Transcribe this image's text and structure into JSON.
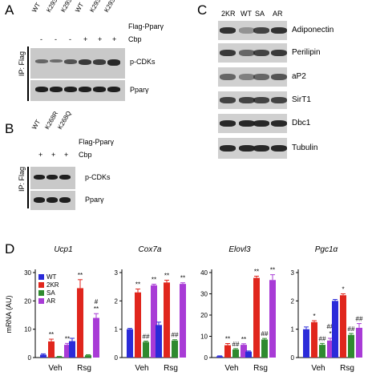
{
  "panelA": {
    "label": "A",
    "lanes": [
      "WT",
      "K293R",
      "K293Q",
      "WT",
      "K293R",
      "K293Q"
    ],
    "construct_label": "Flag-Pparγ",
    "cbp_label": "Cbp",
    "cbp_signs": [
      "-",
      "-",
      "-",
      "+",
      "+",
      "+"
    ],
    "ip_label": "IP: Flag",
    "blots": [
      "p-CDKs",
      "Pparγ"
    ]
  },
  "panelB": {
    "label": "B",
    "lanes": [
      "WT",
      "K268R",
      "K268Q"
    ],
    "construct_label": "Flag-Pparγ",
    "cbp_label": "Cbp",
    "cbp_signs": [
      "+",
      "+",
      "+"
    ],
    "ip_label": "IP: Flag",
    "blots": [
      "p-CDKs",
      "Pparγ"
    ]
  },
  "panelC": {
    "label": "C",
    "lanes": [
      "2KR",
      "WT",
      "SA",
      "AR"
    ],
    "blots": [
      "Adiponectin",
      "Perilipin",
      "aP2",
      "SirT1",
      "Dbc1",
      "Tubulin"
    ]
  },
  "panelD": {
    "label": "D",
    "ylabel": "mRNA (AU)",
    "legend": [
      {
        "name": "WT",
        "color": "#2b2bd9"
      },
      {
        "name": "2KR",
        "color": "#e0261d"
      },
      {
        "name": "SA",
        "color": "#2f8a2f"
      },
      {
        "name": "AR",
        "color": "#a83bd6"
      }
    ]
  },
  "chart_data": [
    {
      "type": "bar",
      "title": "Ucp1",
      "categories": [
        "Veh",
        "Rsg"
      ],
      "ylim": [
        0,
        30
      ],
      "yticks": [
        0,
        10,
        20,
        30
      ],
      "series": [
        {
          "name": "WT",
          "values": [
            1.0,
            5.8
          ],
          "errors": [
            0.3,
            1.0
          ]
        },
        {
          "name": "2KR",
          "values": [
            5.7,
            24.5
          ],
          "errors": [
            0.8,
            3.0
          ]
        },
        {
          "name": "SA",
          "values": [
            0.3,
            0.8
          ],
          "errors": [
            0.1,
            0.2
          ]
        },
        {
          "name": "AR",
          "values": [
            4.5,
            14.0
          ],
          "errors": [
            0.5,
            1.5
          ]
        }
      ],
      "annotations": [
        [
          "",
          "**",
          "",
          "**"
        ],
        [
          "",
          "**",
          "",
          "#\n**"
        ]
      ]
    },
    {
      "type": "bar",
      "title": "Cox7a",
      "categories": [
        "Veh",
        "Rsg"
      ],
      "ylim": [
        0,
        3
      ],
      "yticks": [
        0,
        1,
        2,
        3
      ],
      "series": [
        {
          "name": "WT",
          "values": [
            1.0,
            1.15
          ],
          "errors": [
            0.03,
            0.1
          ]
        },
        {
          "name": "2KR",
          "values": [
            2.3,
            2.65
          ],
          "errors": [
            0.12,
            0.08
          ]
        },
        {
          "name": "SA",
          "values": [
            0.55,
            0.6
          ],
          "errors": [
            0.03,
            0.03
          ]
        },
        {
          "name": "AR",
          "values": [
            2.55,
            2.6
          ],
          "errors": [
            0.04,
            0.04
          ]
        }
      ],
      "annotations": [
        [
          "",
          "**",
          "##",
          "**"
        ],
        [
          "",
          "**",
          "##",
          "**"
        ]
      ]
    },
    {
      "type": "bar",
      "title": "Elovl3",
      "categories": [
        "Veh",
        "Rsg"
      ],
      "ylim": [
        0,
        40
      ],
      "yticks": [
        0,
        10,
        20,
        30,
        40
      ],
      "series": [
        {
          "name": "WT",
          "values": [
            0.6,
            2.8
          ],
          "errors": [
            0.2,
            0.3
          ]
        },
        {
          "name": "2KR",
          "values": [
            5.8,
            37.5
          ],
          "errors": [
            0.8,
            0.8
          ]
        },
        {
          "name": "SA",
          "values": [
            3.8,
            8.5
          ],
          "errors": [
            0.4,
            0.5
          ]
        },
        {
          "name": "AR",
          "values": [
            6.0,
            36.5
          ],
          "errors": [
            0.5,
            2.5
          ]
        }
      ],
      "annotations": [
        [
          "",
          "**",
          "##",
          "**"
        ],
        [
          "",
          "**",
          "##",
          "**"
        ]
      ]
    },
    {
      "type": "bar",
      "title": "Pgc1α",
      "categories": [
        "Veh",
        "Rsg"
      ],
      "ylim": [
        0,
        3
      ],
      "yticks": [
        0,
        1,
        2,
        3
      ],
      "series": [
        {
          "name": "WT",
          "values": [
            1.0,
            2.0
          ],
          "errors": [
            0.08,
            0.05
          ]
        },
        {
          "name": "2KR",
          "values": [
            1.25,
            2.2
          ],
          "errors": [
            0.05,
            0.05
          ]
        },
        {
          "name": "SA",
          "values": [
            0.45,
            0.8
          ],
          "errors": [
            0.05,
            0.05
          ]
        },
        {
          "name": "AR",
          "values": [
            0.6,
            1.05
          ],
          "errors": [
            0.08,
            0.15
          ]
        }
      ],
      "annotations": [
        [
          "",
          "*",
          "##",
          "##\n*"
        ],
        [
          "",
          "*",
          "##",
          "##"
        ]
      ]
    }
  ]
}
